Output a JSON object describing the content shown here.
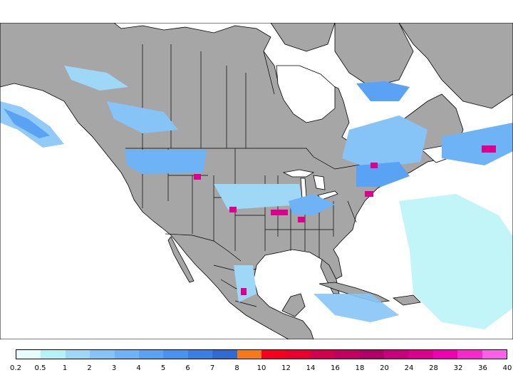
{
  "map": {
    "colors": {
      "ocean": "#ffffff",
      "land": "#a6a6a6",
      "borders": "#000000"
    }
  },
  "legend": {
    "ticks": [
      "0.2",
      "0.5",
      "1",
      "2",
      "3",
      "4",
      "5",
      "6",
      "7",
      "8",
      "10",
      "12",
      "14",
      "16",
      "18",
      "20",
      "24",
      "28",
      "32",
      "36",
      "40"
    ],
    "colors": [
      "#e6fdfd",
      "#b3f2f6",
      "#9fd7f7",
      "#86c4f7",
      "#6fb3f7",
      "#5aa3f4",
      "#4893ef",
      "#3a7fe3",
      "#2f6bd1",
      "#f77a18",
      "#f7001f",
      "#ea0030",
      "#d0004e",
      "#c2005f",
      "#b00068",
      "#c8007c",
      "#dc008f",
      "#ef00b0",
      "#f728cc",
      "#fa60ea"
    ]
  }
}
